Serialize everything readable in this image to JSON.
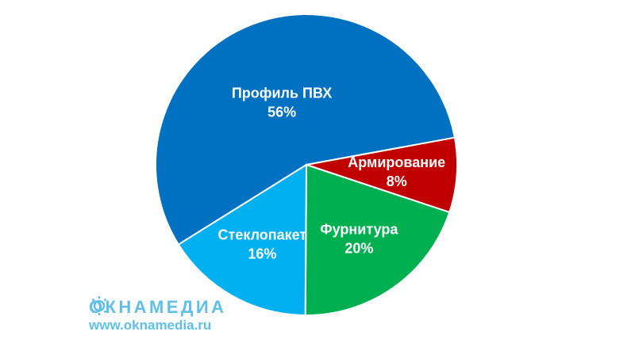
{
  "chart_data": {
    "type": "pie",
    "categories": [
      "Профиль ПВХ",
      "Армирование",
      "Фурнитура",
      "Стеклопакет"
    ],
    "values": [
      56,
      8,
      20,
      16
    ],
    "value_labels": [
      "56%",
      "8%",
      "20%",
      "16%"
    ],
    "colors": [
      "#0070c0",
      "#c00000",
      "#00b050",
      "#00b0f0"
    ]
  },
  "logo": {
    "name": "ОКНАМЕДИА",
    "url": "www.oknamedia.ru"
  }
}
